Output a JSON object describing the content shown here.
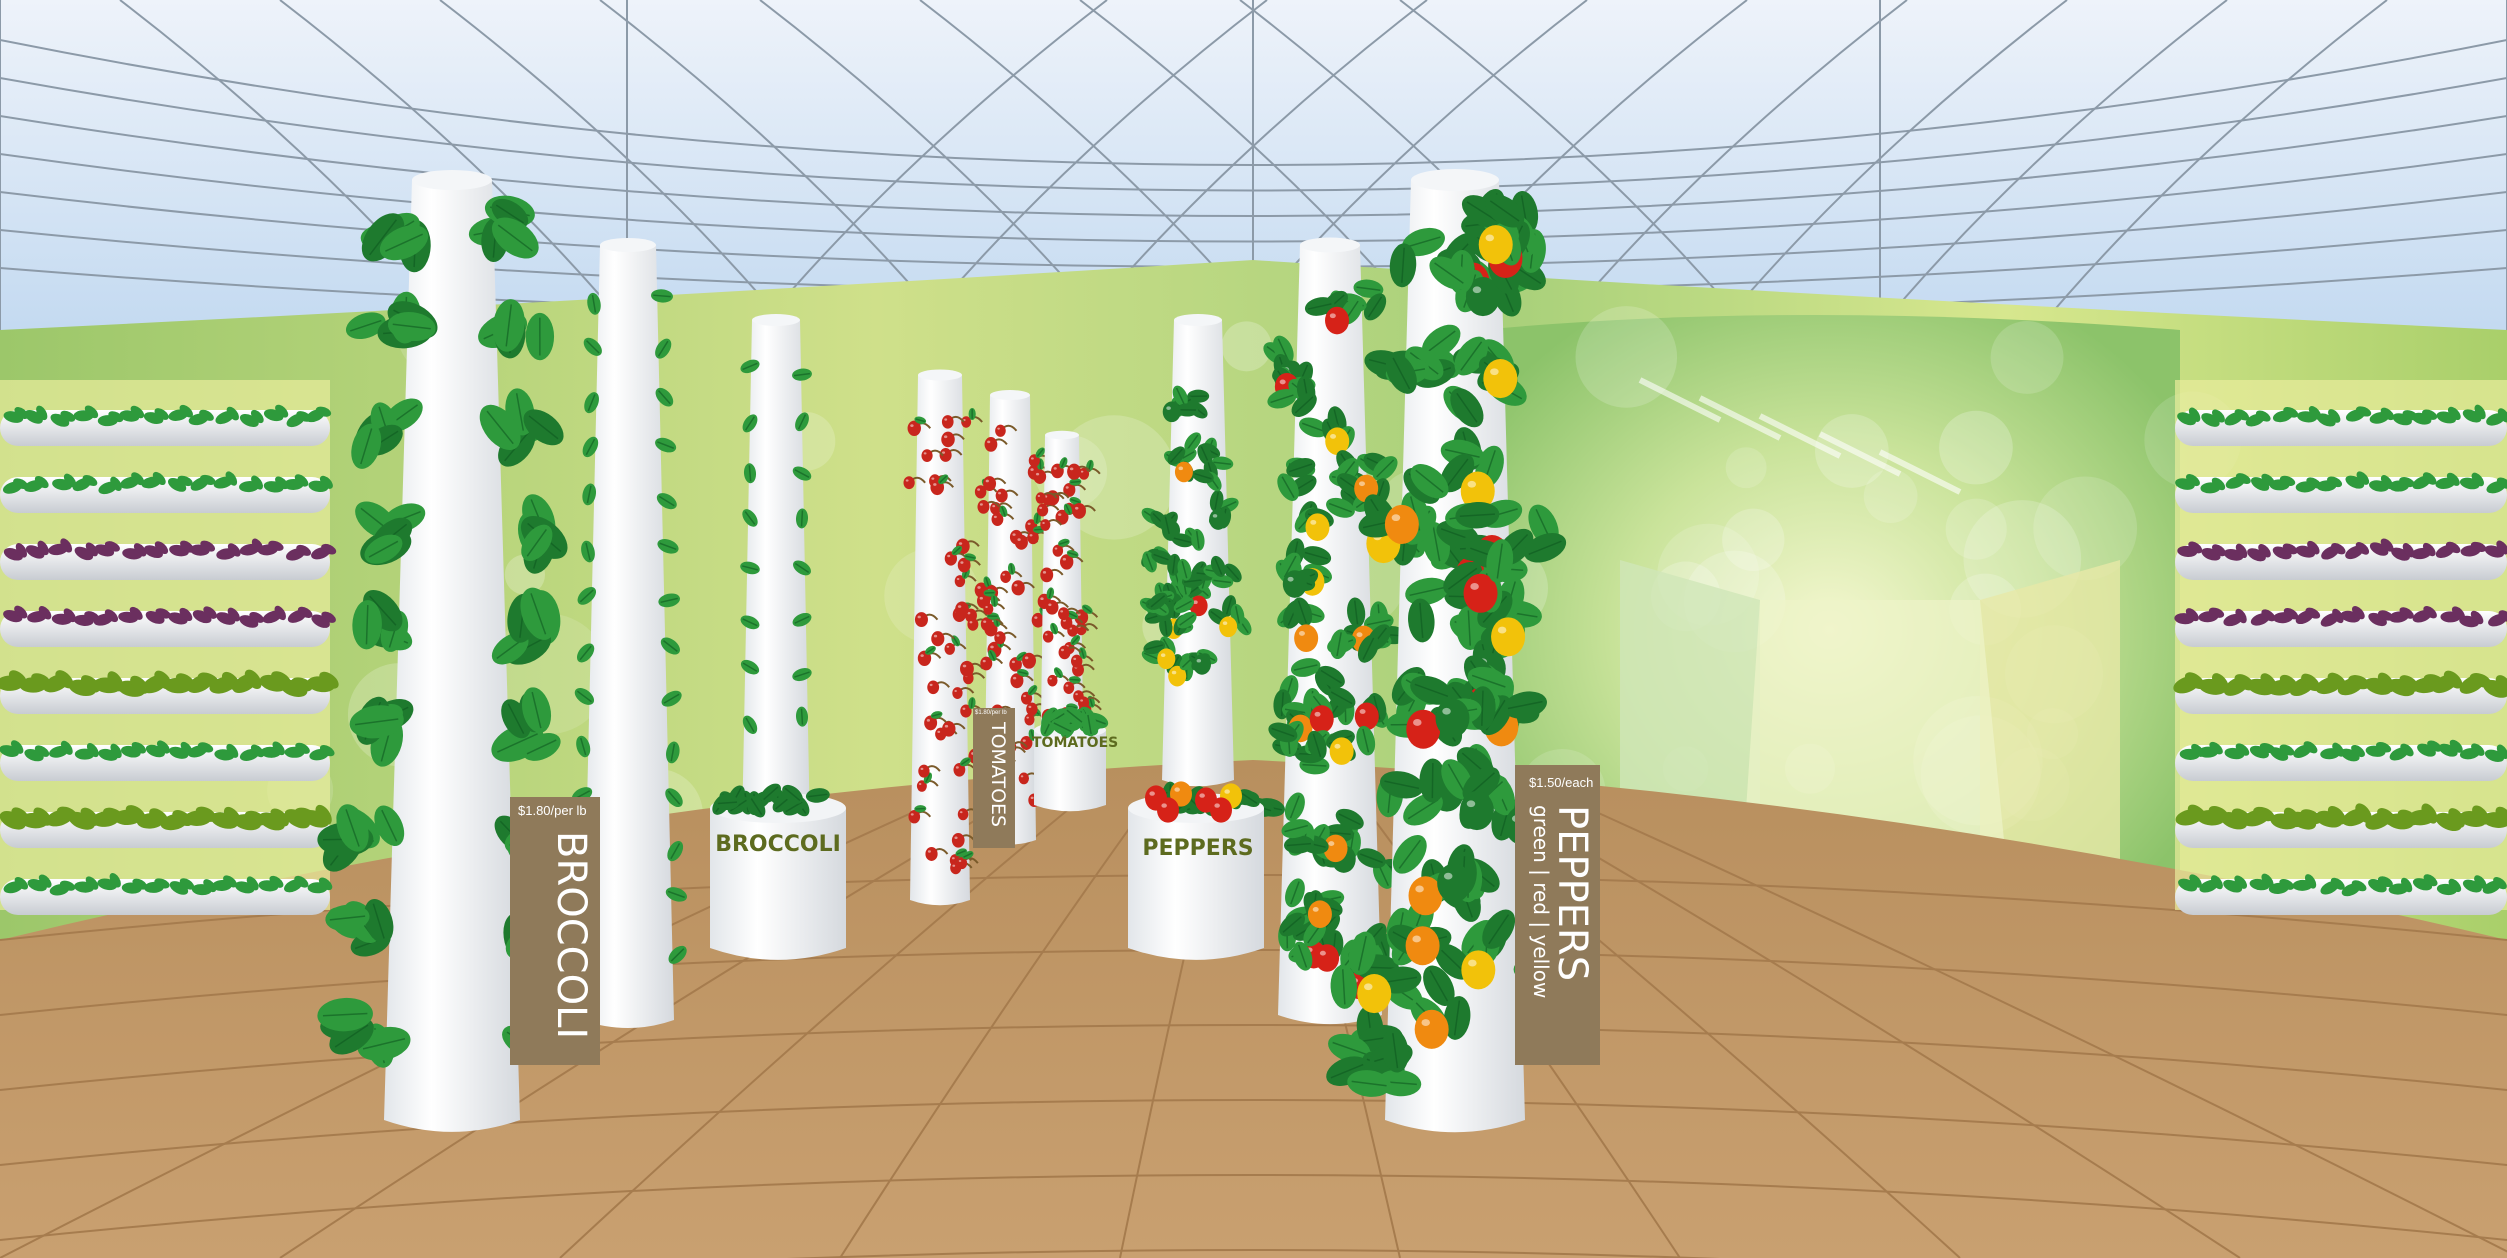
{
  "scene": {
    "kind": "vertical-farm-supermarket-panorama",
    "colors": {
      "sky_top": "#e6eef8",
      "sky_bottom": "#b9d4ee",
      "grid_line": "#8c9aa8",
      "wall_green": "#a9cf6a",
      "wall_yellow": "#e3e48a",
      "floor": "#c49a68",
      "floor_line": "#a67c4e",
      "tower_white": "#ffffff",
      "tower_shade": "#d9dde2",
      "leaf_dark": "#1e7a2e",
      "leaf_mid": "#2e9a3c",
      "leaf_light": "#5bb84a",
      "basil_purple": "#6b2f5f",
      "tomato_red": "#c8261d",
      "pepper_red": "#d62218",
      "pepper_orange": "#f08a10",
      "pepper_yellow": "#f2c20a",
      "sign_brown": "#8f7a5a",
      "planter_text": "#5d6b1f"
    }
  },
  "signs": {
    "broccoli": {
      "title": "BROCCOLI",
      "price": "$1.80/per lb"
    },
    "peppers": {
      "title": "PEPPERS",
      "subtitle": "green | red | yellow",
      "price": "$1.50/each"
    },
    "tomatoes_small": {
      "title": "TOMATOES",
      "price": "$1.80/per lb"
    }
  },
  "planters": {
    "broccoli": "BROCCOLI",
    "peppers": "PEPPERS",
    "tomatoes": "TOMATOES"
  }
}
